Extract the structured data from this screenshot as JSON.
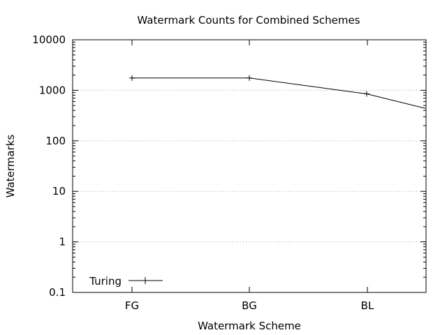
{
  "chart_data": {
    "type": "line",
    "title": "Watermark Counts for Combined Schemes",
    "xlabel": "Watermark Scheme",
    "ylabel": "Watermarks",
    "categories": [
      "FG",
      "BG",
      "BL"
    ],
    "y_scale": "log",
    "ylim": [
      0.1,
      10000
    ],
    "y_ticks": [
      {
        "value": 0.1,
        "label": "0.1"
      },
      {
        "value": 1,
        "label": "1"
      },
      {
        "value": 10,
        "label": "10"
      },
      {
        "value": 100,
        "label": "100"
      },
      {
        "value": 1000,
        "label": "1000"
      },
      {
        "value": 10000,
        "label": "10000"
      }
    ],
    "grid": "horizontal-dotted",
    "legend_position": "bottom-left",
    "series": [
      {
        "name": "Turing",
        "color": "#000000",
        "points": [
          {
            "x": 0,
            "y": 1750
          },
          {
            "x": 1,
            "y": 1750
          },
          {
            "x": 2,
            "y": 850
          },
          {
            "x": 2.5,
            "y": 440
          }
        ]
      }
    ]
  }
}
